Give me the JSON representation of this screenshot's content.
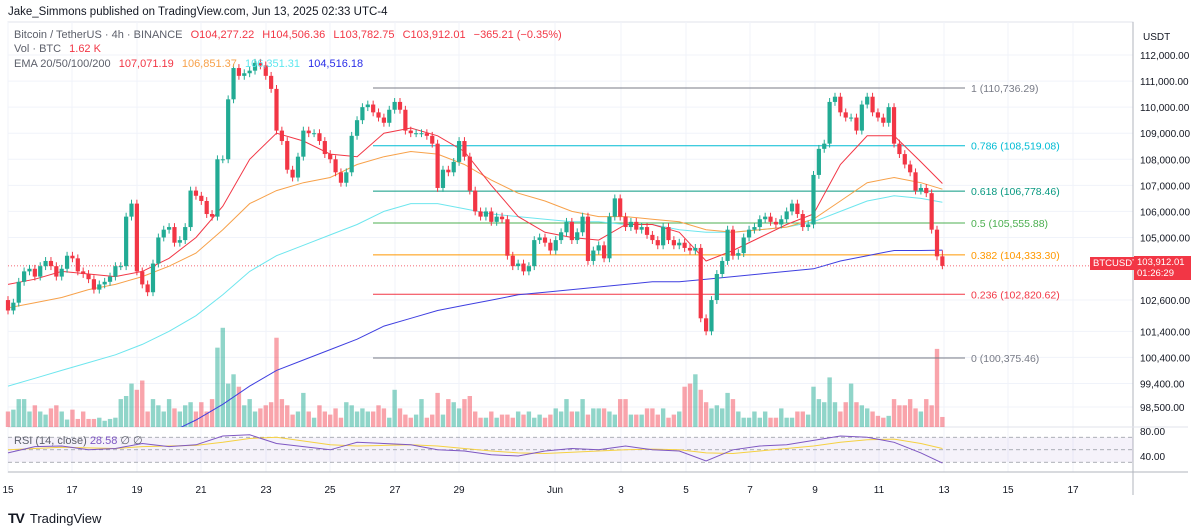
{
  "header": {
    "published": "Jake_Simmons published on TradingView.com, Jun 13, 2025 02:33 UTC-4",
    "symbol": "Bitcoin / TetherUS · 4h · BINANCE",
    "open": "O104,277.22",
    "high": "H104,506.36",
    "low": "L103,782.75",
    "close": "C103,912.01",
    "change": "−365.21 (−0.35%)",
    "vol_label": "Vol · BTC",
    "vol_value": "1.62 K",
    "ema_label": "EMA 20/50/100/200",
    "ema20": "107,071.19",
    "ema50": "106,851.37",
    "ema100": "106,351.31",
    "ema200": "104,516.18"
  },
  "rsi_legend": {
    "label": "RSI (14, close)",
    "value": "28.58",
    "extra": "∅ ∅"
  },
  "price_axis": {
    "unit": "USDT",
    "ticks": [
      "112,000.00",
      "111,000.00",
      "110,000.00",
      "109,000.00",
      "108,000.00",
      "107,000.00",
      "106,000.00",
      "105,000.00",
      "102,600.00",
      "101,400.00",
      "100,400.00",
      "99,400.00",
      "98,500.00"
    ],
    "rsi_ticks": [
      "80.00",
      "40.00"
    ]
  },
  "last_price": {
    "symbol": "BTCUSDT",
    "price": "103,912.01",
    "countdown": "01:26:29"
  },
  "fib_levels": [
    {
      "label": "1 (110,736.29)",
      "price": 110736.29,
      "color": "#787b86"
    },
    {
      "label": "0.786 (108,519.08)",
      "price": 108519.08,
      "color": "#00bcd4"
    },
    {
      "label": "0.618 (106,778.46)",
      "price": 106778.46,
      "color": "#089981"
    },
    {
      "label": "0.5 (105,555.88)",
      "price": 105555.88,
      "color": "#4caf50"
    },
    {
      "label": "0.382 (104,333.30)",
      "price": 104333.3,
      "color": "#ff9800"
    },
    {
      "label": "0.236 (102,820.62)",
      "price": 102820.62,
      "color": "#f23645"
    },
    {
      "label": "0 (100,375.46)",
      "price": 100375.46,
      "color": "#787b86"
    }
  ],
  "colors": {
    "up": "#22ab94",
    "down": "#f23645",
    "ema20": "#f23645",
    "ema50": "#f7a14a",
    "ema100": "#6ee6ee",
    "ema200": "#3f3fe0",
    "rsi": "#7e57c2",
    "rsi_ma": "#f5d142"
  },
  "chart_data": {
    "type": "candlestick",
    "interval": "4h",
    "x_ticks": [
      "15",
      "17",
      "19",
      "21",
      "23",
      "25",
      "27",
      "29",
      "Jun",
      "3",
      "5",
      "7",
      "9",
      "11",
      "13",
      "15",
      "17"
    ],
    "ylim": [
      97800,
      112500
    ],
    "closes": [
      102200,
      102500,
      103300,
      103700,
      103800,
      103500,
      103900,
      104100,
      103900,
      103500,
      103800,
      104300,
      104200,
      103700,
      103600,
      103400,
      103000,
      103200,
      103300,
      103500,
      103900,
      103900,
      105800,
      106300,
      103700,
      103200,
      102900,
      104000,
      105000,
      105300,
      105400,
      104800,
      104900,
      105400,
      106800,
      106600,
      106400,
      105900,
      105800,
      108000,
      108000,
      110300,
      111500,
      111200,
      111300,
      111400,
      111700,
      111600,
      111200,
      110700,
      109100,
      108700,
      107600,
      107300,
      108100,
      109100,
      109000,
      109000,
      108700,
      108200,
      108000,
      107500,
      107100,
      107500,
      108900,
      109500,
      110000,
      110100,
      109800,
      109600,
      109400,
      109900,
      110200,
      109900,
      109100,
      109000,
      109000,
      109000,
      108900,
      108600,
      106900,
      107600,
      107500,
      107900,
      108700,
      108100,
      106800,
      106000,
      105800,
      106000,
      105600,
      105800,
      105700,
      104300,
      103900,
      104000,
      103700,
      103900,
      104900,
      105000,
      104800,
      104500,
      104900,
      105200,
      105600,
      104900,
      105200,
      105800,
      104100,
      104500,
      104700,
      104200,
      105800,
      106500,
      105800,
      105400,
      105600,
      105300,
      105400,
      105100,
      104900,
      104700,
      105400,
      104900,
      104700,
      104800,
      104600,
      104500,
      104600,
      101900,
      101400,
      102600,
      103600,
      104100,
      105300,
      104300,
      104400,
      105000,
      105300,
      105400,
      105700,
      105800,
      105600,
      105500,
      105700,
      106000,
      106300,
      105900,
      105400,
      105500,
      107400,
      108400,
      108600,
      110200,
      110400,
      109800,
      109600,
      109600,
      109100,
      110100,
      110400,
      109800,
      109600,
      109400,
      110000,
      108600,
      108200,
      107800,
      107500,
      106800,
      106900,
      106700,
      105300,
      104277.22,
      103912.01
    ],
    "first_open": 102600,
    "last_high": 104506.36,
    "last_low": 103782.75,
    "volume_k": [
      2.5,
      2.8,
      4.5,
      4.5,
      2.5,
      3.5,
      2.5,
      2.0,
      3.0,
      3.5,
      2.5,
      1.2,
      2.8,
      1.3,
      2.5,
      1.3,
      1.3,
      1.5,
      1.0,
      1.3,
      1.5,
      4.5,
      5.0,
      7.0,
      6.0,
      7.5,
      2.5,
      4.5,
      3.5,
      2.5,
      4.5,
      3.0,
      2.5,
      3.5,
      4.0,
      2.5,
      4.0,
      2.5,
      4.5,
      12.8,
      16.0,
      7.0,
      8.5,
      6.5,
      3.5,
      4.5,
      2.5,
      3.0,
      3.5,
      4.0,
      14.4,
      4.5,
      3.5,
      2.0,
      2.5,
      5.5,
      2.5,
      1.5,
      3.5,
      2.5,
      2.0,
      3.0,
      1.5,
      4.0,
      3.5,
      2.5,
      3.0,
      2.5,
      2.5,
      3.5,
      3.0,
      1.5,
      6.0,
      3.0,
      2.0,
      1.5,
      2.0,
      4.5,
      1.5,
      2.0,
      5.5,
      2.0,
      4.5,
      4.0,
      3.0,
      4.5,
      5.0,
      2.5,
      1.5,
      1.5,
      2.5,
      1.5,
      2.0,
      2.0,
      1.5,
      2.5,
      2.0,
      2.5,
      1.5,
      2.0,
      1.5,
      2.0,
      3.0,
      2.5,
      4.5,
      2.5,
      2.5,
      4.5,
      2.0,
      3.0,
      3.0,
      3.0,
      2.5,
      2.0,
      4.5,
      4.5,
      2.0,
      2.0,
      2.0,
      3.0,
      3.0,
      2.0,
      3.0,
      1.5,
      2.0,
      2.5,
      6.5,
      7.0,
      8.5,
      6.0,
      4.0,
      3.0,
      3.5,
      3.0,
      5.5,
      4.5,
      2.5,
      1.5,
      1.5,
      2.5,
      1.5,
      2.5,
      1.5,
      1.5,
      3.0,
      1.5,
      1.5,
      2.5,
      2.5,
      2.0,
      6.5,
      4.5,
      4.0,
      8.0,
      4.0,
      2.5,
      4.0,
      7.0,
      4.0,
      3.5,
      3.0,
      2.5,
      1.8,
      1.5,
      1.8,
      4.5,
      3.5,
      3.5,
      4.5,
      3.0,
      2.5,
      4.5,
      3.5,
      12.6,
      1.62
    ],
    "ema20": [
      103200,
      103400,
      103700,
      103600,
      103500,
      103700,
      104200,
      105000,
      106200,
      108000,
      109000,
      108700,
      108200,
      108100,
      109000,
      109200,
      108900,
      108300,
      107000,
      105800,
      105200,
      105000,
      104900,
      105500,
      105500,
      105200,
      104100,
      104500,
      105000,
      105500,
      105900,
      107800,
      108900,
      108900,
      107900,
      107071.19
    ],
    "ema50": [
      102300,
      102500,
      102700,
      103000,
      103200,
      103500,
      103900,
      104400,
      105300,
      106300,
      106800,
      107100,
      107300,
      107800,
      108100,
      108300,
      108200,
      107800,
      107200,
      106700,
      106400,
      106000,
      105800,
      105800,
      105700,
      105600,
      105300,
      105200,
      105300,
      105400,
      105700,
      106400,
      107100,
      107300,
      107100,
      106851.37
    ],
    "ema100": [
      99300,
      99600,
      99900,
      100200,
      100500,
      100900,
      101400,
      102000,
      102800,
      103700,
      104300,
      104700,
      105100,
      105500,
      106000,
      106300,
      106300,
      106100,
      105900,
      105800,
      105700,
      105600,
      105600,
      105500,
      105500,
      105300,
      105200,
      105200,
      105300,
      105400,
      105600,
      106000,
      106400,
      106600,
      106500,
      106351.31
    ],
    "ema200": [
      95600,
      95900,
      96200,
      96500,
      96800,
      97100,
      97500,
      98000,
      98600,
      99300,
      99900,
      100300,
      100700,
      101100,
      101600,
      101900,
      102200,
      102400,
      102600,
      102800,
      102900,
      103000,
      103100,
      103200,
      103300,
      103300,
      103400,
      103500,
      103600,
      103700,
      103800,
      104100,
      104300,
      104500,
      104500,
      104516.18
    ],
    "rsi": [
      45,
      55,
      56,
      50,
      52,
      60,
      55,
      58,
      72,
      74,
      60,
      55,
      50,
      62,
      60,
      58,
      50,
      48,
      42,
      40,
      48,
      52,
      50,
      56,
      50,
      48,
      32,
      50,
      56,
      58,
      65,
      72,
      70,
      62,
      45,
      28.58
    ],
    "rsi_ma": [
      50,
      52,
      54,
      53,
      52,
      55,
      56,
      57,
      62,
      68,
      70,
      64,
      58,
      56,
      57,
      58,
      56,
      52,
      48,
      45,
      44,
      46,
      48,
      50,
      51,
      50,
      45,
      44,
      48,
      52,
      56,
      62,
      66,
      67,
      60,
      52
    ],
    "rsi_levels": [
      70,
      50,
      30
    ]
  },
  "footer": {
    "logo_mark": "TV",
    "brand": "TradingView"
  }
}
